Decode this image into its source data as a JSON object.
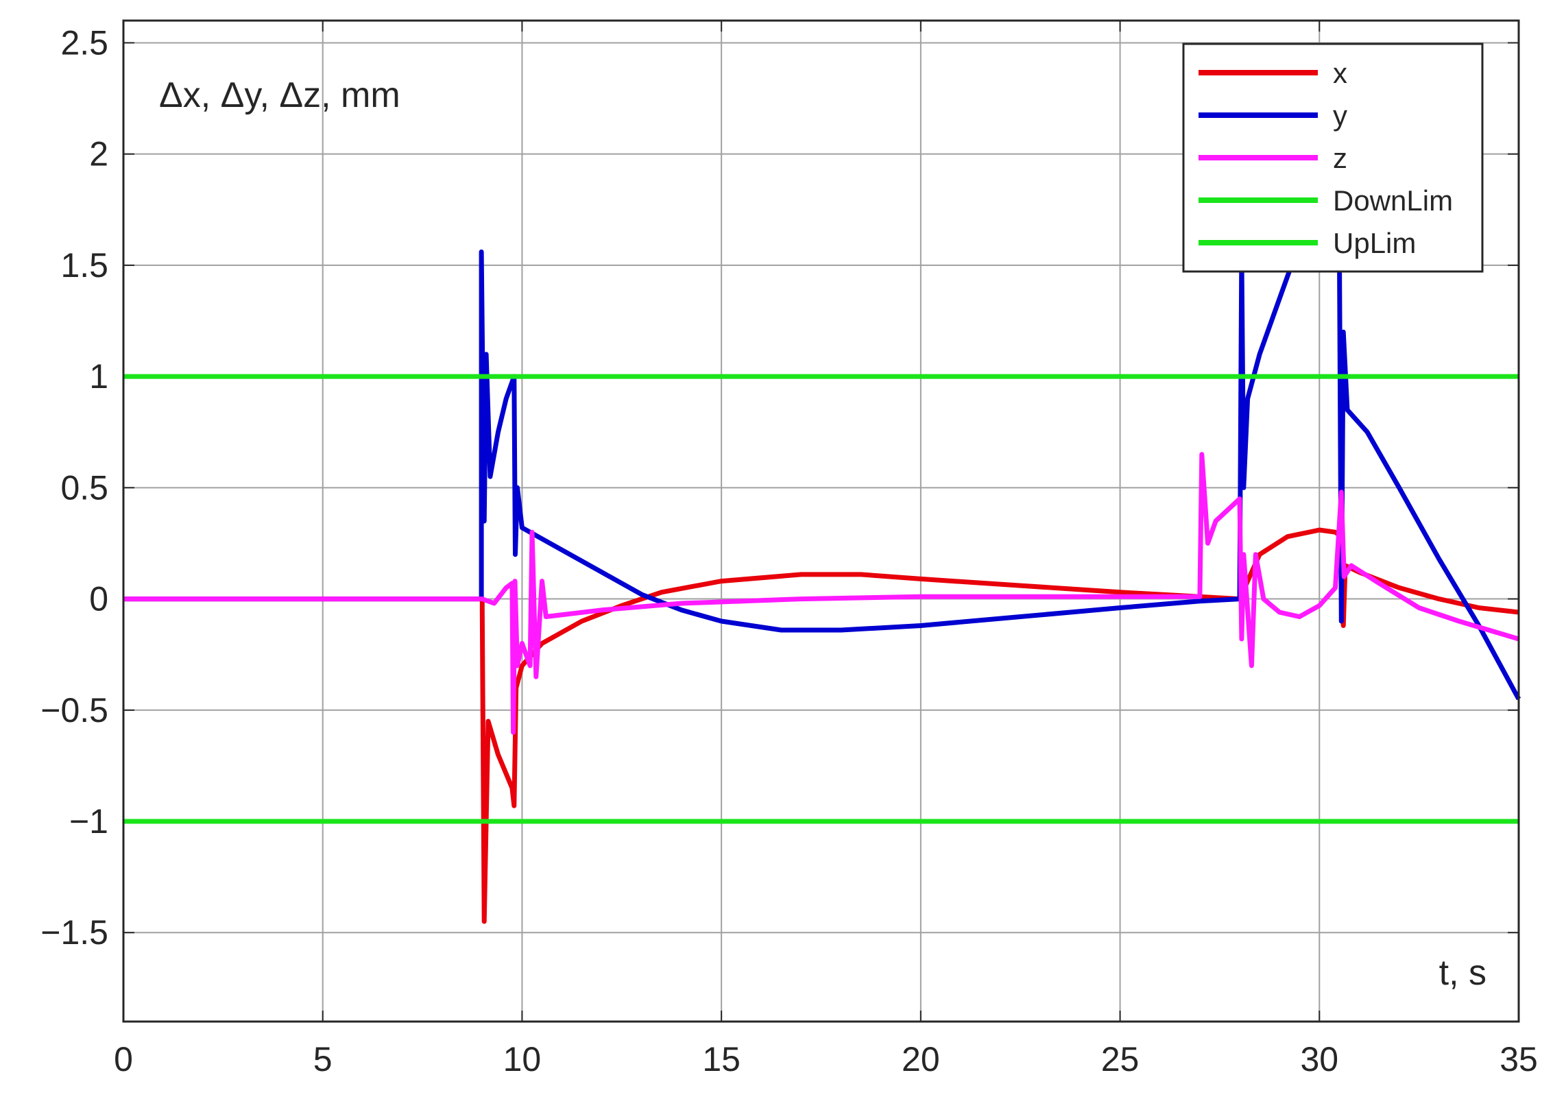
{
  "chart_data": {
    "type": "line",
    "title": "",
    "xlabel": "t, s",
    "ylabel": "Δx, Δy, Δz, mm",
    "xlim": [
      0,
      35
    ],
    "ylim": [
      -1.9,
      2.6
    ],
    "xticks": [
      0,
      5,
      10,
      15,
      20,
      25,
      30,
      35
    ],
    "xtick_labels": [
      "0",
      "5",
      "10",
      "15",
      "20",
      "25",
      "30",
      "35"
    ],
    "yticks": [
      2.5,
      2,
      1.5,
      1,
      0.5,
      0,
      -0.5,
      -1,
      -1.5
    ],
    "ytick_labels": [
      "2.5",
      "2",
      "1.5",
      "1",
      "0.5",
      "0",
      "−0.5",
      "−1",
      "−1.5"
    ],
    "grid": true,
    "legend_position": "top-right",
    "series": [
      {
        "name": "x",
        "color": "#e8000b",
        "points": [
          [
            0,
            0
          ],
          [
            9.0,
            0
          ],
          [
            9.0,
            -0.05
          ],
          [
            9.05,
            -1.45
          ],
          [
            9.15,
            -0.55
          ],
          [
            9.4,
            -0.7
          ],
          [
            9.75,
            -0.85
          ],
          [
            9.8,
            -0.93
          ],
          [
            9.85,
            -0.4
          ],
          [
            10.0,
            -0.3
          ],
          [
            10.5,
            -0.2
          ],
          [
            11.5,
            -0.1
          ],
          [
            12.5,
            -0.03
          ],
          [
            13.5,
            0.03
          ],
          [
            15,
            0.08
          ],
          [
            17,
            0.11
          ],
          [
            18.5,
            0.11
          ],
          [
            20,
            0.09
          ],
          [
            22.5,
            0.06
          ],
          [
            25,
            0.03
          ],
          [
            27,
            0.01
          ],
          [
            28.0,
            0.0
          ],
          [
            28.5,
            0.2
          ],
          [
            29.2,
            0.28
          ],
          [
            30.0,
            0.31
          ],
          [
            30.4,
            0.3
          ],
          [
            30.55,
            0.28
          ],
          [
            30.6,
            -0.12
          ],
          [
            30.65,
            0.15
          ],
          [
            31,
            0.12
          ],
          [
            32,
            0.05
          ],
          [
            33,
            0.0
          ],
          [
            34,
            -0.04
          ],
          [
            35,
            -0.06
          ]
        ]
      },
      {
        "name": "y",
        "color": "#0000d0",
        "points": [
          [
            0,
            0
          ],
          [
            8.98,
            0
          ],
          [
            8.98,
            1.56
          ],
          [
            9.05,
            0.35
          ],
          [
            9.1,
            1.1
          ],
          [
            9.2,
            0.55
          ],
          [
            9.4,
            0.75
          ],
          [
            9.6,
            0.9
          ],
          [
            9.8,
            1.0
          ],
          [
            9.83,
            0.2
          ],
          [
            9.88,
            0.5
          ],
          [
            10.0,
            0.32
          ],
          [
            11,
            0.22
          ],
          [
            12,
            0.12
          ],
          [
            13,
            0.02
          ],
          [
            14,
            -0.05
          ],
          [
            15,
            -0.1
          ],
          [
            16.5,
            -0.14
          ],
          [
            18,
            -0.14
          ],
          [
            20,
            -0.12
          ],
          [
            22.5,
            -0.08
          ],
          [
            25,
            -0.04
          ],
          [
            27,
            -0.01
          ],
          [
            28.0,
            0.0
          ],
          [
            28.05,
            1.55
          ],
          [
            28.1,
            0.5
          ],
          [
            28.2,
            0.9
          ],
          [
            28.5,
            1.1
          ],
          [
            29,
            1.35
          ],
          [
            29.4,
            1.55
          ],
          [
            29.6,
            1.6
          ],
          [
            30.5,
            1.6
          ],
          [
            30.55,
            -0.1
          ],
          [
            30.6,
            1.2
          ],
          [
            30.7,
            0.85
          ],
          [
            31.2,
            0.75
          ],
          [
            32,
            0.5
          ],
          [
            33,
            0.18
          ],
          [
            34,
            -0.12
          ],
          [
            35,
            -0.45
          ]
        ]
      },
      {
        "name": "z",
        "color": "#ff1aff",
        "points": [
          [
            0,
            0
          ],
          [
            9.0,
            0
          ],
          [
            9.3,
            -0.02
          ],
          [
            9.6,
            0.05
          ],
          [
            9.75,
            0.07
          ],
          [
            9.78,
            -0.6
          ],
          [
            9.82,
            0.08
          ],
          [
            9.88,
            -0.3
          ],
          [
            10.0,
            -0.2
          ],
          [
            10.2,
            -0.3
          ],
          [
            10.25,
            0.3
          ],
          [
            10.35,
            -0.35
          ],
          [
            10.5,
            0.08
          ],
          [
            10.6,
            -0.08
          ],
          [
            12,
            -0.05
          ],
          [
            14,
            -0.02
          ],
          [
            17,
            0.0
          ],
          [
            20,
            0.01
          ],
          [
            23,
            0.01
          ],
          [
            25.5,
            0.01
          ],
          [
            27.0,
            0.01
          ],
          [
            27.05,
            0.65
          ],
          [
            27.2,
            0.25
          ],
          [
            27.4,
            0.35
          ],
          [
            28.0,
            0.45
          ],
          [
            28.05,
            -0.18
          ],
          [
            28.1,
            0.2
          ],
          [
            28.3,
            -0.3
          ],
          [
            28.4,
            0.2
          ],
          [
            28.6,
            0.0
          ],
          [
            29,
            -0.06
          ],
          [
            29.5,
            -0.08
          ],
          [
            30.0,
            -0.03
          ],
          [
            30.4,
            0.05
          ],
          [
            30.55,
            0.48
          ],
          [
            30.62,
            0.1
          ],
          [
            30.8,
            0.15
          ],
          [
            31.5,
            0.07
          ],
          [
            32.5,
            -0.04
          ],
          [
            33.5,
            -0.1
          ],
          [
            35,
            -0.18
          ]
        ]
      },
      {
        "name": "DownLim",
        "color": "#1ae41a",
        "points": [
          [
            0,
            -1
          ],
          [
            35,
            -1
          ]
        ]
      },
      {
        "name": "UpLim",
        "color": "#1ae41a",
        "points": [
          [
            0,
            1
          ],
          [
            35,
            1
          ]
        ]
      }
    ]
  }
}
